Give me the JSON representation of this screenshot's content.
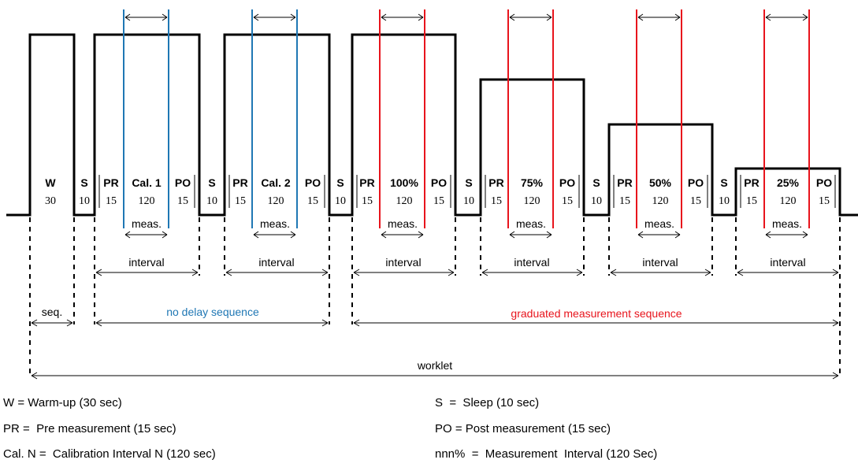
{
  "colors": {
    "line": "#000000",
    "calibration": "#1f77b4",
    "measurement": "#e8141c"
  },
  "phases": [
    {
      "code": "W",
      "duration": "30"
    },
    {
      "code": "S",
      "duration": "10"
    },
    {
      "code": "PR",
      "duration": "15"
    },
    {
      "code": "Cal. 1",
      "duration": "120"
    },
    {
      "code": "PO",
      "duration": "15"
    },
    {
      "code": "S",
      "duration": "10"
    },
    {
      "code": "PR",
      "duration": "15"
    },
    {
      "code": "Cal. 2",
      "duration": "120"
    },
    {
      "code": "PO",
      "duration": "15"
    },
    {
      "code": "S",
      "duration": "10"
    },
    {
      "code": "PR",
      "duration": "15"
    },
    {
      "code": "100%",
      "duration": "120"
    },
    {
      "code": "PO",
      "duration": "15"
    },
    {
      "code": "S",
      "duration": "10"
    },
    {
      "code": "PR",
      "duration": "15"
    },
    {
      "code": "75%",
      "duration": "120"
    },
    {
      "code": "PO",
      "duration": "15"
    },
    {
      "code": "S",
      "duration": "10"
    },
    {
      "code": "PR",
      "duration": "15"
    },
    {
      "code": "50%",
      "duration": "120"
    },
    {
      "code": "PO",
      "duration": "15"
    },
    {
      "code": "S",
      "duration": "10"
    },
    {
      "code": "PR",
      "duration": "15"
    },
    {
      "code": "25%",
      "duration": "120"
    },
    {
      "code": "PO",
      "duration": "15"
    }
  ],
  "spans": {
    "meas": "meas.",
    "interval": "interval",
    "seq": "seq.",
    "no_delay": "no delay sequence",
    "graduated": "graduated measurement sequence",
    "worklet": "worklet"
  },
  "legend": {
    "warmup": "W = Warm-up (30 sec)",
    "sleep": "S  =  Sleep (10 sec)",
    "pre": "PR =  Pre measurement (15 sec)",
    "post": "PO = Post measurement (15 sec)",
    "calibration": "Cal. N =  Calibration Interval N (120 sec)",
    "measurement": "nnn%  =  Measurement  Interval (120 Sec)"
  }
}
